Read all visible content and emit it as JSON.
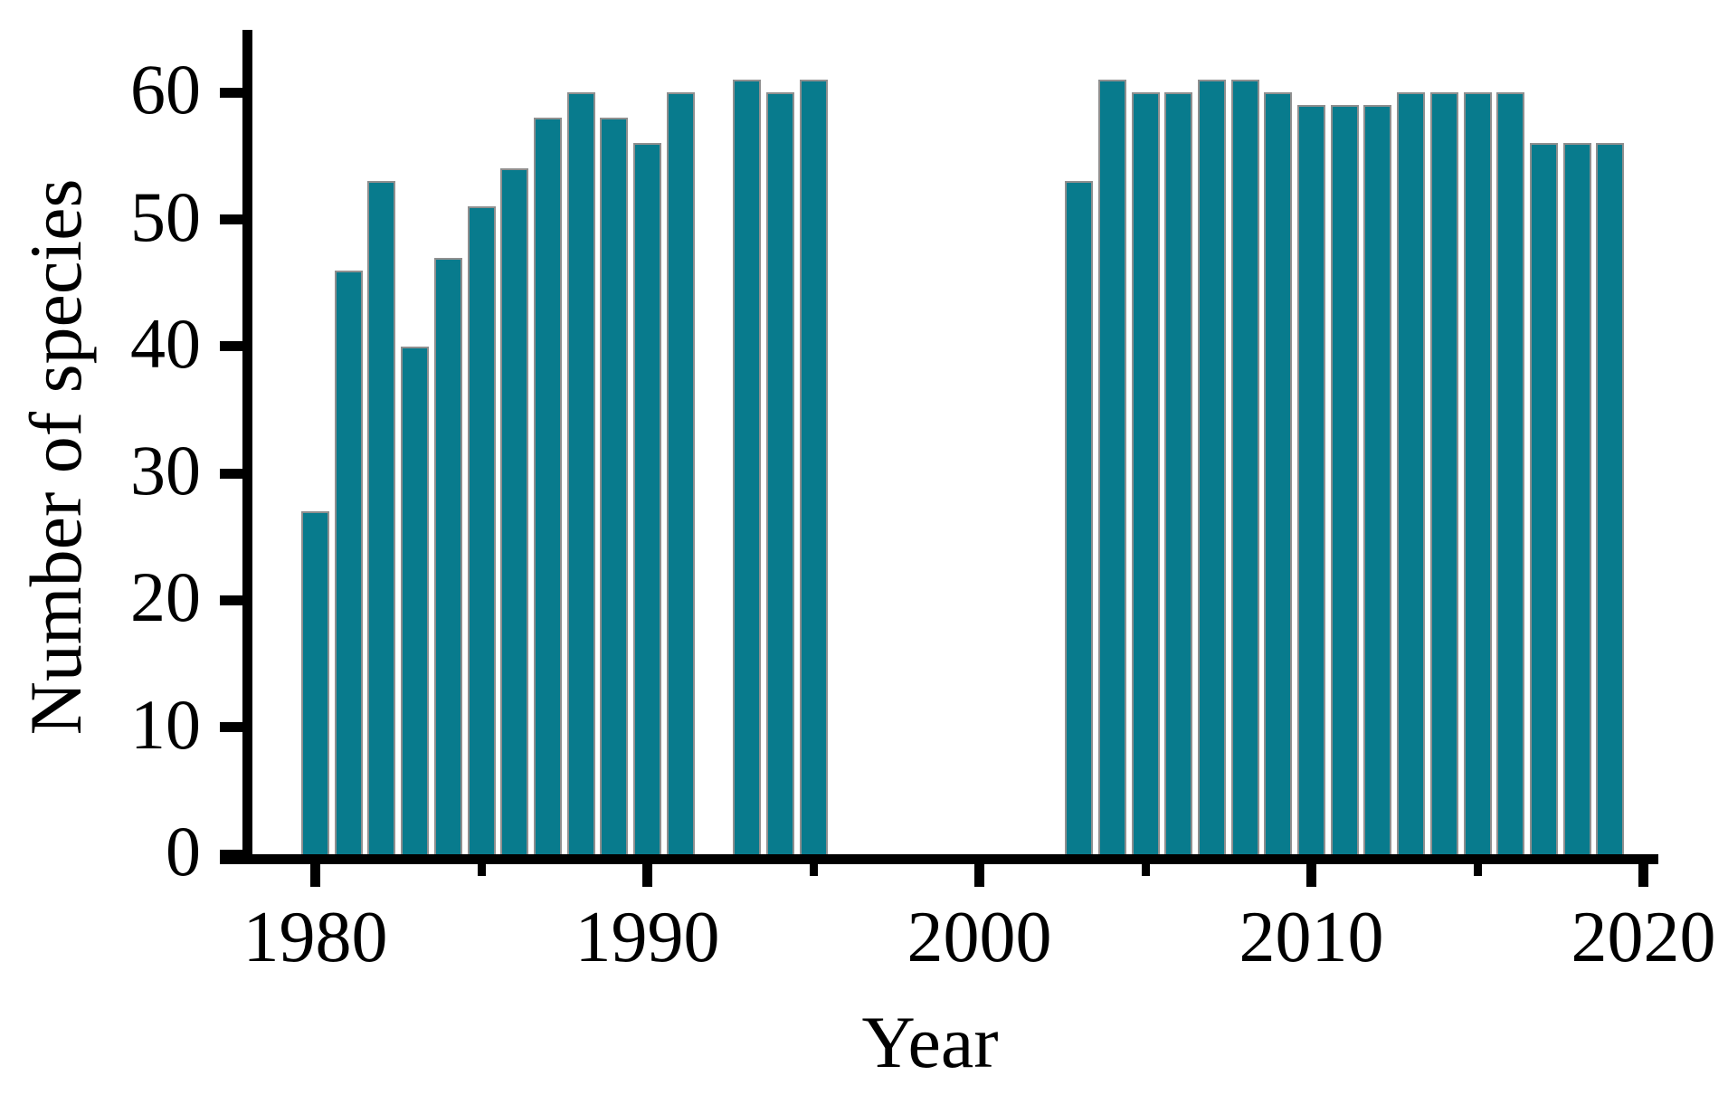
{
  "chart_data": {
    "type": "bar",
    "title": "",
    "xlabel": "Year",
    "ylabel": "Number of species",
    "legend": "none",
    "grid": false,
    "xlim": [
      1977.9,
      2021.6
    ],
    "ylim": [
      0,
      65
    ],
    "y_ticks": [
      0,
      10,
      20,
      30,
      40,
      50,
      60
    ],
    "x_ticks_major": [
      1980,
      1990,
      2000,
      2010,
      2020
    ],
    "x_ticks_minor": [
      1985,
      1995,
      2005,
      2015
    ],
    "bar_color": "#087b8d",
    "bar_edge_color": "#8f8f8f",
    "axis_color": "#000000",
    "background_color": "#ffffff",
    "points": [
      {
        "year": 1980,
        "value": 27
      },
      {
        "year": 1981,
        "value": 46
      },
      {
        "year": 1982,
        "value": 53
      },
      {
        "year": 1983,
        "value": 40
      },
      {
        "year": 1984,
        "value": 47
      },
      {
        "year": 1985,
        "value": 51
      },
      {
        "year": 1986,
        "value": 54
      },
      {
        "year": 1987,
        "value": 58
      },
      {
        "year": 1988,
        "value": 60
      },
      {
        "year": 1989,
        "value": 58
      },
      {
        "year": 1990,
        "value": 56
      },
      {
        "year": 1991,
        "value": 60
      },
      {
        "year": 1993,
        "value": 61
      },
      {
        "year": 1994,
        "value": 60
      },
      {
        "year": 1995,
        "value": 61
      },
      {
        "year": 2003,
        "value": 53
      },
      {
        "year": 2004,
        "value": 61
      },
      {
        "year": 2005,
        "value": 60
      },
      {
        "year": 2006,
        "value": 60
      },
      {
        "year": 2007,
        "value": 61
      },
      {
        "year": 2008,
        "value": 61
      },
      {
        "year": 2009,
        "value": 60
      },
      {
        "year": 2010,
        "value": 59
      },
      {
        "year": 2011,
        "value": 59
      },
      {
        "year": 2012,
        "value": 59
      },
      {
        "year": 2013,
        "value": 60
      },
      {
        "year": 2014,
        "value": 60
      },
      {
        "year": 2015,
        "value": 60
      },
      {
        "year": 2016,
        "value": 60
      },
      {
        "year": 2017,
        "value": 56
      },
      {
        "year": 2018,
        "value": 56
      },
      {
        "year": 2019,
        "value": 56
      }
    ]
  }
}
